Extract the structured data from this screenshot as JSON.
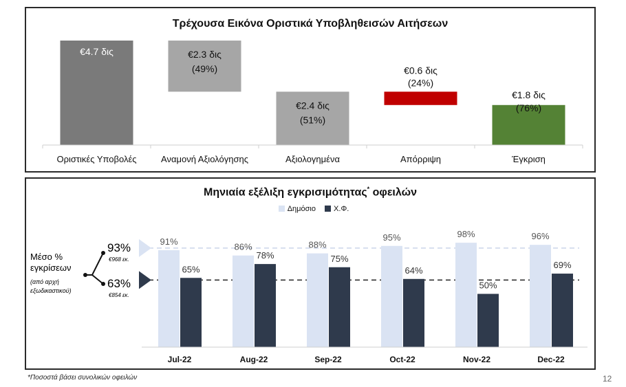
{
  "colors": {
    "submissions": "#7a7a7a",
    "pending": "#a6a6a6",
    "evaluated": "#a6a6a6",
    "rejected": "#c00000",
    "approved": "#548235",
    "public": "#dae3f3",
    "private": "#2f3a4c"
  },
  "footnote": "*Ποσοστά βάσει συνολικών οφειλών",
  "page_number": "12",
  "avg_panel": {
    "label_line1": "Μέσο %",
    "label_line2": "εγκρίσεων",
    "label_note1": "(από αρχή",
    "label_note2": "εξωδικαστικού)",
    "public_pct": "93%",
    "public_amount": "€968 εκ.",
    "private_pct": "63%",
    "private_amount": "€854 εκ."
  },
  "chart_data": [
    {
      "type": "bar",
      "title": "Τρέχουσα Εικόνα Οριστικά Υποβληθεισών Αιτήσεων",
      "categories": [
        "Οριστικές Υποβολές",
        "Αναμονή Αξιολόγησης",
        "Αξιολογημένα",
        "Απόρριψη",
        "Έγκριση"
      ],
      "values": [
        4.7,
        2.3,
        2.4,
        0.6,
        1.8
      ],
      "value_labels": [
        "€4.7 δις",
        "€2.3 δις",
        "€2.4 δις",
        "€0.6 δις",
        "€1.8 δις"
      ],
      "pct_labels": [
        "",
        "(49%)",
        "(51%)",
        "(24%)",
        "(76%)"
      ],
      "waterfall_bases": [
        0,
        2.4,
        0,
        1.8,
        0
      ],
      "colors": [
        "#7a7a7a",
        "#a6a6a6",
        "#a6a6a6",
        "#c00000",
        "#548235"
      ]
    },
    {
      "type": "bar",
      "title": "Μηνιαία εξέλιξη εγκρισιμότητας",
      "title_sup": "*",
      "title_suffix": " οφειλών",
      "categories": [
        "Jul-22",
        "Aug-22",
        "Sep-22",
        "Oct-22",
        "Nov-22",
        "Dec-22"
      ],
      "series": [
        {
          "name": "Δημόσιο",
          "values": [
            91,
            86,
            88,
            95,
            98,
            96
          ]
        },
        {
          "name": "Χ.Φ.",
          "values": [
            65,
            78,
            75,
            64,
            50,
            69
          ]
        }
      ],
      "reference_lines": [
        93,
        63
      ],
      "ylim": [
        0,
        100
      ]
    }
  ]
}
